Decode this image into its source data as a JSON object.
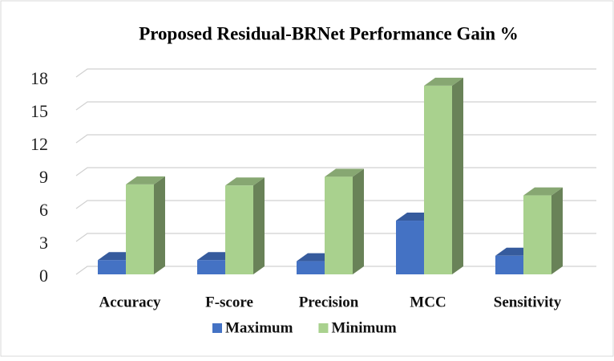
{
  "chart_data": {
    "type": "bar3d",
    "title": "Proposed Residual-BRNet Performance Gain %",
    "categories": [
      "Accuracy",
      "F-score",
      "Precision",
      "MCC",
      "Sensitivity"
    ],
    "series": [
      {
        "name": "Maximum",
        "color": "#4472c4",
        "values": [
          1.3,
          1.3,
          1.2,
          4.9,
          1.7
        ]
      },
      {
        "name": "Minimum",
        "color": "#a9d18e",
        "values": [
          8.2,
          8.1,
          8.9,
          17.2,
          7.2
        ]
      }
    ],
    "ylim": [
      0,
      18
    ],
    "yticks": [
      0,
      3,
      6,
      9,
      12,
      15,
      18
    ],
    "grid": true,
    "legend": "bottom"
  }
}
